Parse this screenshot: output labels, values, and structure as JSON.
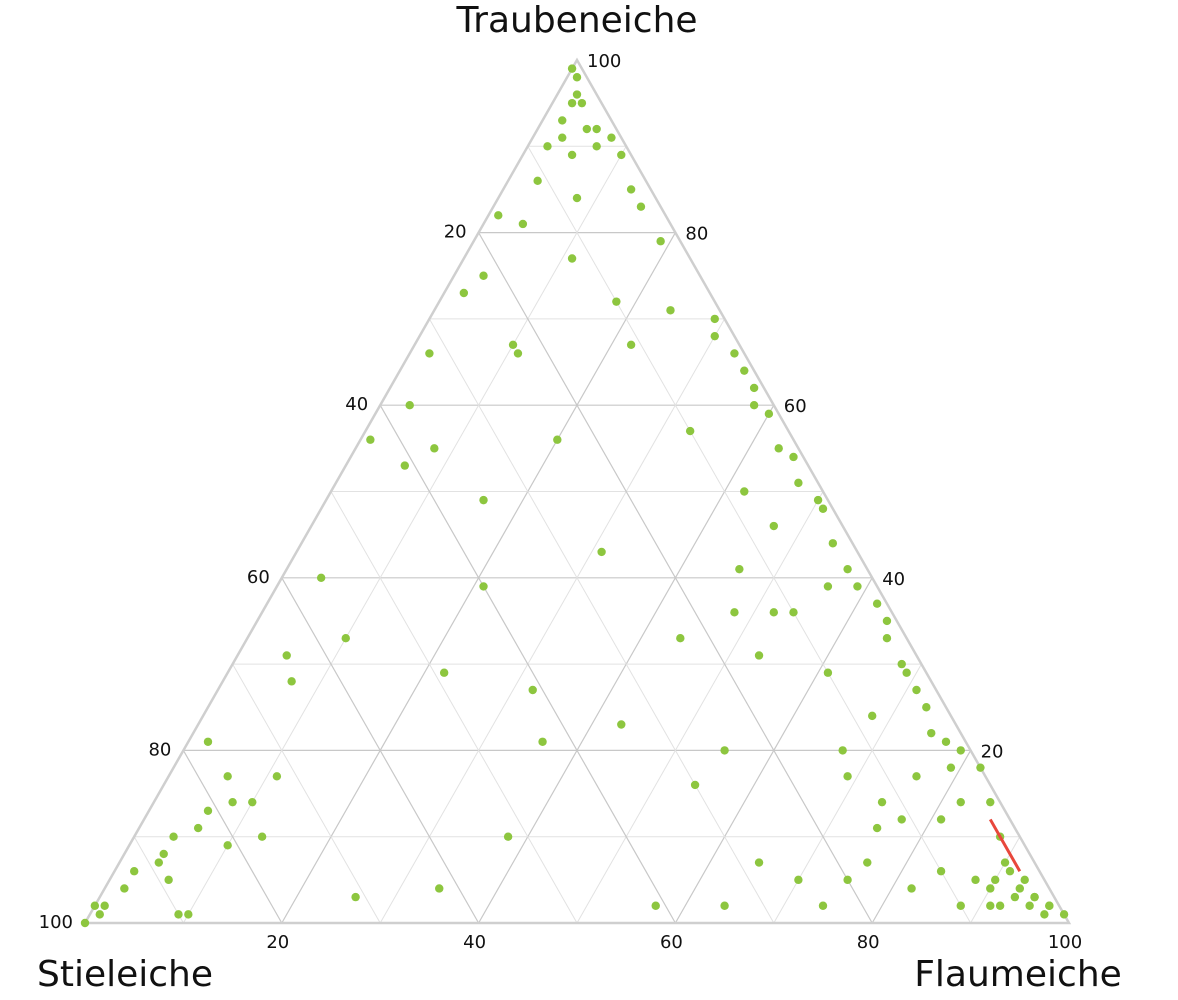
{
  "chart_data": {
    "type": "ternary",
    "top_label": "Traubeneiche",
    "left_label": "Stieleiche",
    "right_label": "Flaumeiche",
    "left_ticks": [
      20,
      40,
      60,
      80,
      100
    ],
    "right_ticks": [
      20,
      40,
      60,
      80,
      100
    ],
    "bottom_ticks": [
      20,
      40,
      60,
      80,
      100
    ],
    "grid": true,
    "series": [
      {
        "color": "#8dc63f",
        "mode": "markers",
        "traubeneiche": [
          99,
          98,
          96,
          95,
          95,
          93,
          92,
          92,
          91,
          91,
          90,
          89,
          90,
          89,
          86,
          84,
          85,
          83,
          82,
          81,
          79,
          77,
          75,
          73,
          66,
          67,
          66,
          60,
          56,
          53,
          55,
          56,
          49,
          40,
          33,
          31,
          28,
          21,
          17,
          17,
          14,
          14,
          13,
          11,
          10,
          9,
          10,
          8,
          7,
          6,
          5,
          4,
          2,
          1,
          1,
          1,
          2,
          0,
          72,
          67,
          57,
          50,
          46,
          43,
          39,
          41,
          36,
          33,
          31,
          36,
          36,
          29,
          27,
          23,
          21,
          20,
          16,
          10,
          4,
          3,
          2,
          2,
          7,
          5,
          2,
          5,
          7,
          20,
          17,
          29,
          24,
          71,
          70,
          68,
          66,
          64,
          62,
          60,
          59,
          55,
          54,
          51,
          49,
          48,
          44,
          41,
          39,
          39,
          37,
          35,
          33,
          30,
          29,
          27,
          25,
          22,
          21,
          20,
          18,
          17,
          18,
          14,
          14,
          10,
          7,
          5,
          3,
          2,
          1,
          5,
          2,
          2,
          3,
          2,
          6,
          4,
          12,
          14,
          11,
          12,
          6,
          4,
          3,
          5,
          1,
          2,
          4,
          2
        ],
        "flaumeiche": [
          0,
          1,
          2,
          2,
          3,
          2,
          5,
          6,
          3,
          8,
          2,
          5,
          7,
          10,
          3,
          8,
          13,
          15,
          1,
          4,
          19,
          11,
          3,
          2,
          2,
          10,
          11,
          3,
          1,
          6,
          8,
          20,
          16,
          4,
          10,
          5,
          7,
          2,
          6,
          11,
          8,
          10,
          6,
          6,
          4,
          10,
          13,
          4,
          4,
          2,
          6,
          2,
          1,
          1,
          9,
          10,
          0,
          0,
          18,
          22,
          33,
          42,
          47,
          31,
          21,
          46,
          48,
          44,
          53,
          52,
          54,
          22,
          32,
          43,
          36,
          55,
          54,
          38,
          34,
          26,
          57,
          64,
          65,
          70,
          74,
          75,
          76,
          67,
          69,
          61,
          68,
          24,
          29,
          30,
          33,
          35,
          37,
          38,
          40,
          43,
          45,
          47,
          50,
          51,
          54,
          57,
          56,
          59,
          62,
          64,
          65,
          68,
          69,
          71,
          73,
          75,
          77,
          79,
          79,
          76,
          82,
          82,
          85,
          88,
          90,
          93,
          95,
          97,
          99,
          88,
          91,
          92,
          93,
          95,
          84,
          82,
          81,
          74,
          75,
          77,
          91,
          93,
          95,
          90,
          97,
          97,
          90,
          88
        ]
      },
      {
        "color": "#e8473c",
        "mode": "line",
        "traubeneiche": [
          12,
          10,
          8,
          7,
          6
        ],
        "flaumeiche": [
          86,
          88,
          90,
          91,
          92
        ]
      }
    ]
  }
}
